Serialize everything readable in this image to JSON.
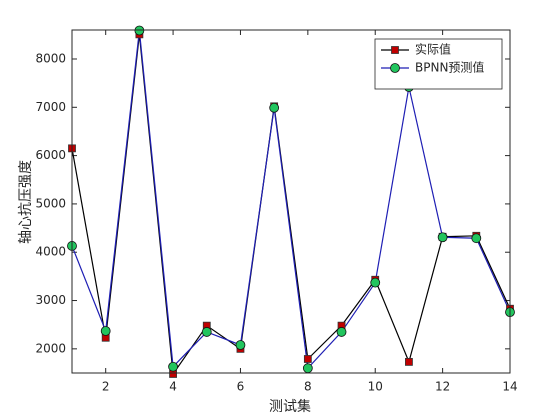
{
  "chart_data": {
    "type": "line",
    "xlabel": "测试集",
    "ylabel": "轴心抗压强度",
    "x": [
      1,
      2,
      3,
      4,
      5,
      6,
      7,
      8,
      9,
      10,
      11,
      12,
      13,
      14
    ],
    "xlim": [
      1,
      14
    ],
    "xticks": [
      2,
      4,
      6,
      8,
      10,
      12,
      14
    ],
    "ylim": [
      1500,
      8600
    ],
    "yticks": [
      2000,
      3000,
      4000,
      5000,
      6000,
      7000,
      8000
    ],
    "legend": "upper right",
    "series": [
      {
        "name": "实际值",
        "color": "#000000",
        "marker": "square",
        "marker_color": "#c00000",
        "values": [
          6150,
          2230,
          8510,
          1480,
          2480,
          2000,
          7020,
          1790,
          2480,
          3430,
          1730,
          4320,
          4340,
          2830
        ]
      },
      {
        "name": "BPNN预测值",
        "color": "#1f1fb4",
        "marker": "circle",
        "marker_color": "#22c55e",
        "values": [
          4130,
          2370,
          8590,
          1630,
          2350,
          2080,
          6990,
          1600,
          2350,
          3370,
          7420,
          4310,
          4290,
          2760
        ]
      }
    ]
  }
}
